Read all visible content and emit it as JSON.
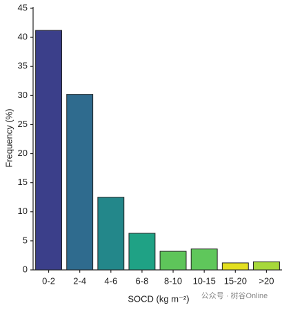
{
  "chart_data": {
    "type": "bar",
    "x_label": "SOCD (kg m⁻²)",
    "y_label": "Frequency (%)",
    "categories": [
      "0-2",
      "2-4",
      "4-6",
      "6-8",
      "8-10",
      "10-15",
      "15-20",
      ">20"
    ],
    "values": [
      41.2,
      30.2,
      12.5,
      6.3,
      3.2,
      3.6,
      1.2,
      1.4
    ],
    "colors": [
      "#3b3f8a",
      "#2f6b8e",
      "#23878a",
      "#1fa285",
      "#5ec55a",
      "#5fc75b",
      "#e3df1f",
      "#a6d83a"
    ],
    "ylim": [
      0,
      45
    ],
    "yticks": [
      0,
      5,
      10,
      15,
      20,
      25,
      30,
      35,
      40,
      45
    ],
    "watermark": "公众号 · 树谷Online"
  }
}
